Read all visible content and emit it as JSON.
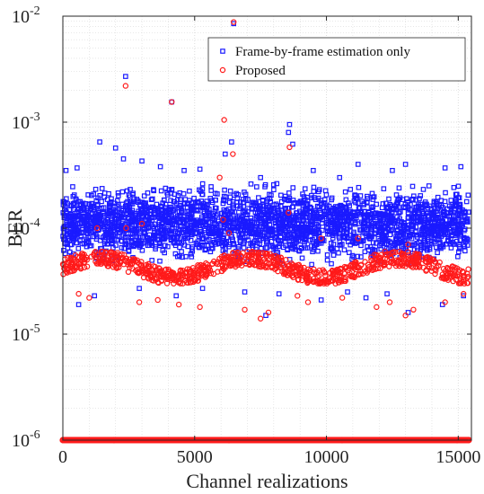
{
  "chart_data": {
    "type": "scatter",
    "title": "",
    "xlabel": "Channel realizations",
    "ylabel": "BER",
    "xlim": [
      0,
      15500
    ],
    "ylim": [
      1e-06,
      0.01
    ],
    "y_scale": "log",
    "grid": true,
    "x_ticks": [
      "0",
      "5000",
      "10000",
      "15000"
    ],
    "x_tick_values": [
      0,
      5000,
      10000,
      15000
    ],
    "y_ticks": [
      {
        "base": "10",
        "exp": "-6",
        "value": 1e-06
      },
      {
        "base": "10",
        "exp": "-5",
        "value": 1e-05
      },
      {
        "base": "10",
        "exp": "-4",
        "value": 0.0001
      },
      {
        "base": "10",
        "exp": "-3",
        "value": 0.001
      },
      {
        "base": "10",
        "exp": "-2",
        "value": 0.01
      }
    ],
    "legend_position": "top-right",
    "colors": {
      "frame_series": "#1a1aff",
      "proposed_series": "#ff1a1a",
      "grid": "#d9d9d9",
      "axis": "#262626"
    },
    "series": [
      {
        "name": "Frame-by-frame estimation only",
        "marker": "square",
        "color": "#1a1aff",
        "points": [
          [
            2380,
            0.0027
          ],
          [
            6480,
            0.0085
          ],
          [
            8600,
            0.00095
          ],
          [
            4130,
            0.00155
          ],
          [
            1400,
            0.00065
          ],
          [
            2000,
            0.00057
          ],
          [
            6400,
            0.00065
          ],
          [
            6160,
            0.0005
          ],
          [
            8560,
            0.0008
          ],
          [
            8720,
            0.00062
          ],
          [
            3000,
            0.00043
          ],
          [
            4600,
            0.00035
          ],
          [
            2300,
            0.00045
          ],
          [
            9500,
            0.00035
          ],
          [
            11200,
            0.0004
          ],
          [
            13000,
            0.0004
          ],
          [
            15100,
            0.00038
          ],
          [
            14500,
            0.00037
          ],
          [
            7500,
            0.0003
          ],
          [
            10500,
            0.0003
          ],
          [
            120,
            0.00035
          ],
          [
            540,
            0.00037
          ],
          [
            3700,
            0.00038
          ],
          [
            5200,
            0.00036
          ],
          [
            12500,
            0.00035
          ],
          [
            1200,
            2.3e-05
          ],
          [
            600,
            1.9e-05
          ],
          [
            2900,
            2.7e-05
          ],
          [
            4300,
            2.3e-05
          ],
          [
            7700,
            1.5e-05
          ],
          [
            13100,
            1.6e-05
          ],
          [
            14400,
            1.9e-05
          ],
          [
            9800,
            2.1e-05
          ],
          [
            11500,
            2.2e-05
          ],
          [
            5300,
            2.7e-05
          ],
          [
            6900,
            2.5e-05
          ],
          [
            8200,
            2.4e-05
          ],
          [
            10800,
            2.5e-05
          ],
          [
            12300,
            2.4e-05
          ],
          [
            15200,
            2.3e-05
          ]
        ],
        "band": {
          "x": [
            0,
            15400
          ],
          "y": [
            4e-05,
            0.0003
          ],
          "density": "dense"
        }
      },
      {
        "name": "Proposed",
        "marker": "circle",
        "color": "#ff1a1a",
        "points": [
          [
            2380,
            0.0022
          ],
          [
            6480,
            0.0088
          ],
          [
            4130,
            0.00155
          ],
          [
            6120,
            0.00105
          ],
          [
            8600,
            0.00058
          ],
          [
            6450,
            0.0005
          ],
          [
            5950,
            0.0003
          ],
          [
            3000,
            0.00011
          ],
          [
            6080,
            0.00012
          ],
          [
            8560,
            0.00014
          ],
          [
            1300,
            0.0001
          ],
          [
            2400,
            0.0001
          ],
          [
            9800,
            8e-05
          ],
          [
            6300,
            9e-05
          ],
          [
            11200,
            8e-05
          ],
          [
            13100,
            7e-05
          ],
          [
            600,
            2.4e-05
          ],
          [
            1000,
            2.2e-05
          ],
          [
            2900,
            2e-05
          ],
          [
            4400,
            1.9e-05
          ],
          [
            5200,
            1.8e-05
          ],
          [
            6900,
            1.7e-05
          ],
          [
            7500,
            1.4e-05
          ],
          [
            7800,
            1.6e-05
          ],
          [
            9300,
            2e-05
          ],
          [
            10600,
            2.2e-05
          ],
          [
            11900,
            1.8e-05
          ],
          [
            13000,
            1.5e-05
          ],
          [
            13300,
            1.7e-05
          ],
          [
            14500,
            2e-05
          ],
          [
            15200,
            2.4e-05
          ],
          [
            3600,
            2.1e-05
          ],
          [
            12400,
            2e-05
          ],
          [
            8900,
            2.3e-05
          ]
        ],
        "band": {
          "x": [
            0,
            15400
          ],
          "y": [
            3e-05,
            6e-05
          ],
          "density": "dense"
        },
        "baseline": {
          "y": 1e-06,
          "x": [
            0,
            15400
          ]
        }
      }
    ]
  }
}
